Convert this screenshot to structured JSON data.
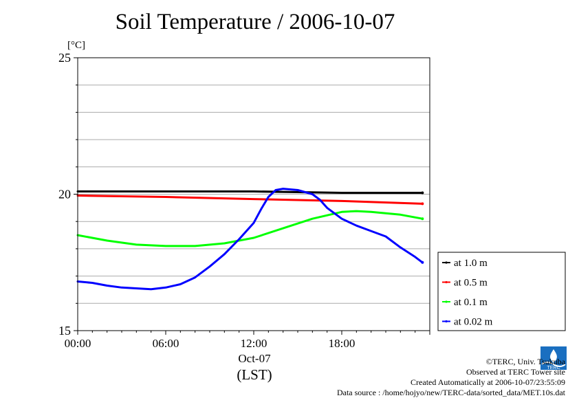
{
  "chart_data": {
    "type": "line",
    "title": "Soil Temperature / 2006-10-07",
    "ylabel": "[°C]",
    "ylim": [
      15,
      25
    ],
    "yticks": [
      15,
      20,
      25
    ],
    "xlim": [
      0,
      24
    ],
    "xticks": [
      {
        "x": 0,
        "label": "00:00"
      },
      {
        "x": 6,
        "label": "06:00"
      },
      {
        "x": 12,
        "label": "12:00"
      },
      {
        "x": 18,
        "label": "18:00"
      }
    ],
    "xdate": "Oct-07",
    "xunit": "(LST)",
    "grid": true,
    "legend_position": "right",
    "series": [
      {
        "name": "at 1.0 m",
        "color": "#000000",
        "x": [
          0,
          6,
          12,
          18,
          23.5
        ],
        "y": [
          20.1,
          20.1,
          20.1,
          20.05,
          20.05
        ]
      },
      {
        "name": "at 0.5 m",
        "color": "#ff0000",
        "x": [
          0,
          6,
          12,
          18,
          23.5
        ],
        "y": [
          19.95,
          19.9,
          19.82,
          19.75,
          19.65
        ]
      },
      {
        "name": "at 0.1 m",
        "color": "#00ff00",
        "x": [
          0,
          2,
          4,
          6,
          8,
          10,
          12,
          14,
          16,
          18,
          19,
          20,
          22,
          23.5
        ],
        "y": [
          18.5,
          18.3,
          18.15,
          18.1,
          18.1,
          18.2,
          18.4,
          18.75,
          19.1,
          19.35,
          19.38,
          19.35,
          19.25,
          19.1
        ]
      },
      {
        "name": "at 0.02 m",
        "color": "#0000ff",
        "x": [
          0,
          1,
          2,
          3,
          4,
          5,
          6,
          7,
          8,
          9,
          10,
          11,
          12,
          12.5,
          13,
          13.5,
          14,
          15,
          16,
          16.5,
          17,
          18,
          19,
          20,
          21,
          22,
          23,
          23.5
        ],
        "y": [
          16.8,
          16.75,
          16.65,
          16.58,
          16.55,
          16.52,
          16.58,
          16.7,
          16.95,
          17.35,
          17.8,
          18.35,
          18.95,
          19.45,
          19.9,
          20.15,
          20.2,
          20.15,
          20.0,
          19.8,
          19.5,
          19.1,
          18.85,
          18.65,
          18.45,
          18.05,
          17.7,
          17.5
        ]
      }
    ]
  },
  "footer": {
    "copyright": "©TERC, Univ. Tsukuba",
    "observed": "Observed at TERC Tower site",
    "created": "Created Automatically at 2006-10-07/23:55:09",
    "source": "Data source : /home/hojyo/new/TERC-data/sorted_data/MET.10s.dat",
    "logo_text": "TERC"
  }
}
